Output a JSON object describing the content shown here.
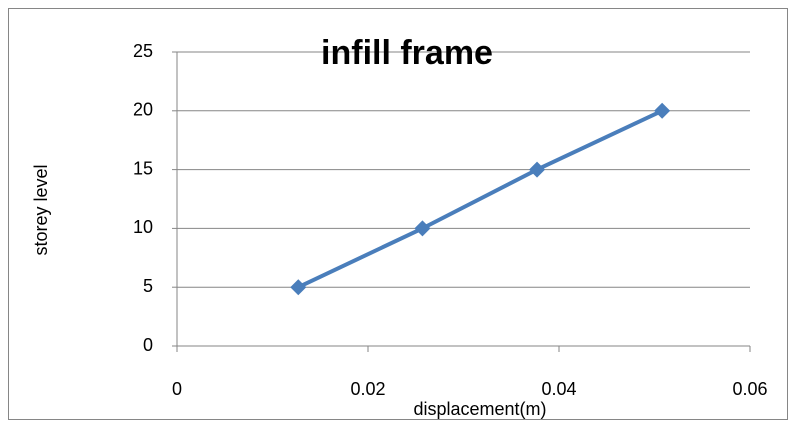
{
  "chart_data": {
    "type": "line",
    "title": "infill frame",
    "x_label": "displacement(m)",
    "y_label": "storey level",
    "x": [
      0.0127,
      0.0257,
      0.0377,
      0.0508
    ],
    "series": [
      {
        "name": "storey level",
        "color": "#4a7ebb",
        "values": [
          5,
          10,
          15,
          20
        ]
      }
    ],
    "xlim": [
      0,
      0.06
    ],
    "xticks": [
      0,
      0.02,
      0.04,
      0.06
    ],
    "ylim": [
      0,
      25
    ],
    "yticks": [
      0,
      5,
      10,
      15,
      20,
      25
    ],
    "grid": true,
    "marker": "diamond"
  }
}
